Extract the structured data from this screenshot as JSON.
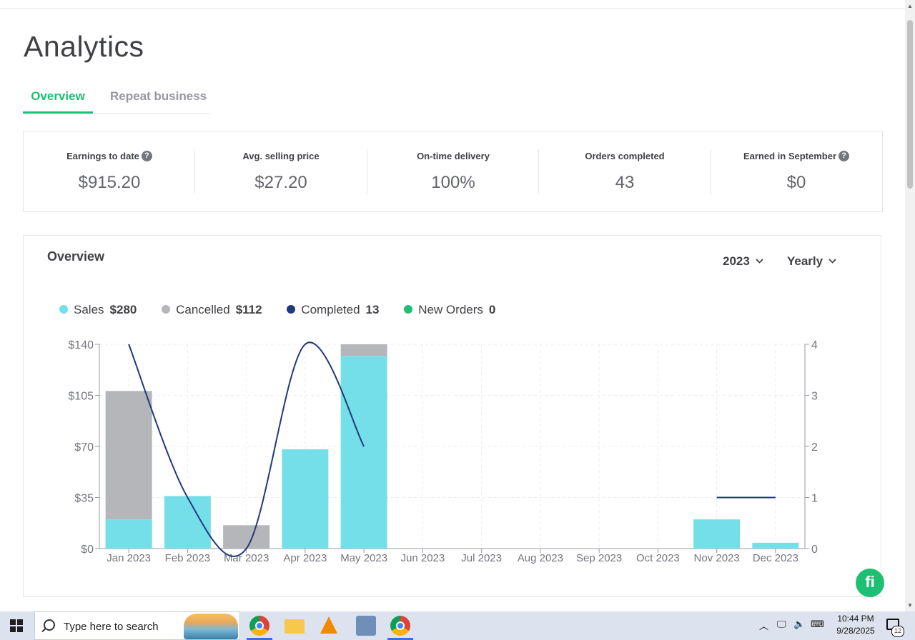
{
  "page": {
    "title": "Analytics"
  },
  "tabs": [
    {
      "label": "Overview",
      "active": true
    },
    {
      "label": "Repeat business",
      "active": false
    }
  ],
  "stats": [
    {
      "label": "Earnings to date",
      "value": "$915.20",
      "help": true
    },
    {
      "label": "Avg. selling price",
      "value": "$27.20",
      "help": false
    },
    {
      "label": "On-time delivery",
      "value": "100%",
      "help": false
    },
    {
      "label": "Orders completed",
      "value": "43",
      "help": false
    },
    {
      "label": "Earned in September",
      "value": "$0",
      "help": true
    }
  ],
  "overview": {
    "title": "Overview",
    "year_dropdown": "2023",
    "period_dropdown": "Yearly",
    "legend": [
      {
        "label": "Sales",
        "value": "$280",
        "color": "#74dee9"
      },
      {
        "label": "Cancelled",
        "value": "$112",
        "color": "#b5b6ba"
      },
      {
        "label": "Completed",
        "value": "13",
        "color": "#1f3a7a"
      },
      {
        "label": "New Orders",
        "value": "0",
        "color": "#1dbf73"
      }
    ]
  },
  "chart_data": {
    "type": "bar",
    "categories": [
      "Jan 2023",
      "Feb 2023",
      "Mar 2023",
      "Apr 2023",
      "May 2023",
      "Jun 2023",
      "Jul 2023",
      "Aug 2023",
      "Sep 2023",
      "Oct 2023",
      "Nov 2023",
      "Dec 2023"
    ],
    "series": [
      {
        "name": "Sales",
        "type": "bar",
        "axis": "left",
        "color": "#74dee9",
        "values": [
          20,
          36,
          0,
          68,
          132,
          0,
          0,
          0,
          0,
          0,
          20,
          4
        ]
      },
      {
        "name": "Cancelled",
        "type": "bar",
        "axis": "left",
        "color": "#b5b6ba",
        "values": [
          88,
          0,
          16,
          0,
          8,
          0,
          0,
          0,
          0,
          0,
          0,
          0
        ]
      },
      {
        "name": "Completed",
        "type": "line",
        "axis": "right",
        "color": "#1f3a7a",
        "values": [
          4,
          1,
          0,
          4,
          2,
          null,
          null,
          null,
          null,
          null,
          1,
          1
        ]
      }
    ],
    "y_left": {
      "ticks": [
        "$0",
        "$35",
        "$70",
        "$105",
        "$140"
      ],
      "ylim": [
        0,
        140
      ]
    },
    "y_right": {
      "ticks": [
        "0",
        "1",
        "2",
        "3",
        "4"
      ],
      "ylim": [
        0,
        4
      ]
    },
    "grid": true
  },
  "badge": {
    "text": "fi"
  },
  "taskbar": {
    "search_placeholder": "Type here to search",
    "time": "10:44 PM",
    "date": "9/28/2025",
    "notification_count": "12"
  }
}
